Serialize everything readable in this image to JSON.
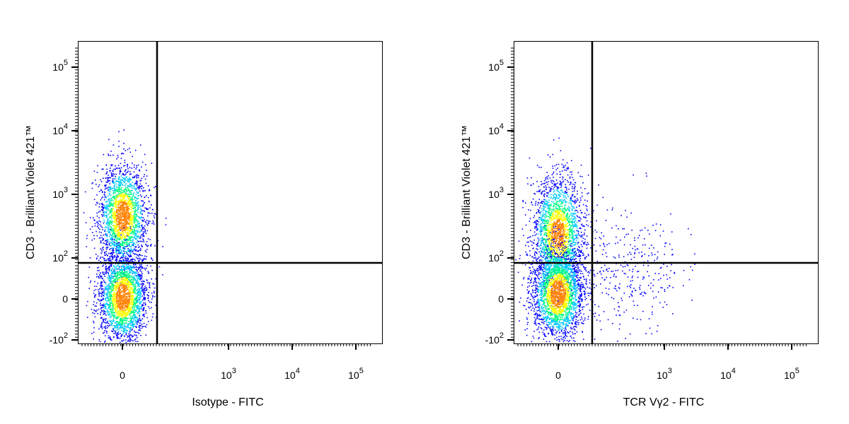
{
  "chart_data": [
    {
      "type": "scatter",
      "style": "density-dot-plot",
      "xlabel": "Isotype - FITC",
      "ylabel": "CD3 - Brilliant Violet 421™",
      "x_scale": "biexponential",
      "y_scale": "biexponential",
      "xlim": [
        -300,
        250000
      ],
      "ylim": [
        -150,
        250000
      ],
      "x_ticks": [
        {
          "value": 0,
          "label": "0",
          "base": "0",
          "exp": ""
        },
        {
          "value": 1000,
          "label": "10^3",
          "base": "10",
          "exp": "3"
        },
        {
          "value": 10000,
          "label": "10^4",
          "base": "10",
          "exp": "4"
        },
        {
          "value": 100000,
          "label": "10^5",
          "base": "10",
          "exp": "5"
        }
      ],
      "y_ticks": [
        {
          "value": -100,
          "label": "-10^2",
          "base": "-10",
          "exp": "2"
        },
        {
          "value": 0,
          "label": "0",
          "base": "0",
          "exp": ""
        },
        {
          "value": 100,
          "label": "10^2",
          "base": "10",
          "exp": "2"
        },
        {
          "value": 1000,
          "label": "10^3",
          "base": "10",
          "exp": "3"
        },
        {
          "value": 10000,
          "label": "10^4",
          "base": "10",
          "exp": "4"
        },
        {
          "value": 100000,
          "label": "10^5",
          "base": "10",
          "exp": "5"
        }
      ],
      "gates": {
        "x": 100,
        "y": 80
      },
      "populations": [
        {
          "x_center": 0,
          "y_center": 700,
          "density": "high"
        },
        {
          "x_center": 0,
          "y_center": 0,
          "density": "high"
        }
      ],
      "color_scale": [
        "#0000ff",
        "#00c8ff",
        "#00ff80",
        "#ffff00",
        "#ff8000",
        "#ff0000"
      ],
      "grid": false
    },
    {
      "type": "scatter",
      "style": "density-dot-plot",
      "xlabel": "TCR Vγ2 - FITC",
      "ylabel": "CD3 - Brilliant Violet 421™",
      "x_scale": "biexponential",
      "y_scale": "biexponential",
      "xlim": [
        -300,
        250000
      ],
      "ylim": [
        -150,
        250000
      ],
      "x_ticks": [
        {
          "value": 0,
          "label": "0",
          "base": "0",
          "exp": ""
        },
        {
          "value": 1000,
          "label": "10^3",
          "base": "10",
          "exp": "3"
        },
        {
          "value": 10000,
          "label": "10^4",
          "base": "10",
          "exp": "4"
        },
        {
          "value": 100000,
          "label": "10^5",
          "base": "10",
          "exp": "5"
        }
      ],
      "y_ticks": [
        {
          "value": -100,
          "label": "-10^2",
          "base": "-10",
          "exp": "2"
        },
        {
          "value": 0,
          "label": "0",
          "base": "0",
          "exp": ""
        },
        {
          "value": 100,
          "label": "10^2",
          "base": "10",
          "exp": "2"
        },
        {
          "value": 1000,
          "label": "10^3",
          "base": "10",
          "exp": "3"
        },
        {
          "value": 10000,
          "label": "10^4",
          "base": "10",
          "exp": "4"
        },
        {
          "value": 100000,
          "label": "10^5",
          "base": "10",
          "exp": "5"
        }
      ],
      "gates": {
        "x": 100,
        "y": 80
      },
      "populations": [
        {
          "x_center": 0,
          "y_center": 250,
          "density": "high"
        },
        {
          "x_center": 0,
          "y_center": 0,
          "density": "high"
        },
        {
          "x_center": 400,
          "y_center": 150,
          "density": "sparse"
        }
      ],
      "color_scale": [
        "#0000ff",
        "#00c8ff",
        "#00ff80",
        "#ffff00",
        "#ff8000",
        "#ff0000"
      ],
      "grid": false
    }
  ]
}
